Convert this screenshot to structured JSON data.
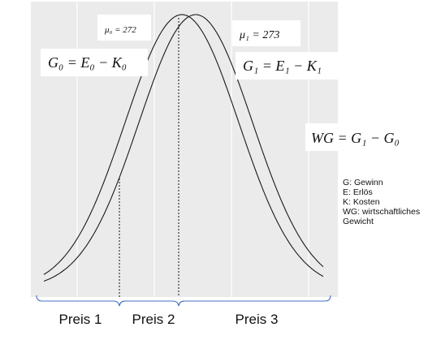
{
  "labels": {
    "mu0": "μ₀ = 272",
    "mu1": "μ₁ = 273",
    "g0": "G₀ = E₀ − K₀",
    "g1": "G₁ = E₁ − K₁",
    "wg": "WG = G₁ − G₀"
  },
  "legend": {
    "line1": "G: Gewinn",
    "line2": "E: Erlös",
    "line3": "K: Kosten",
    "line4a": "WG: wirtschaftliches",
    "line4b": "Gewicht"
  },
  "prices": {
    "p1": "Preis 1",
    "p2": "Preis 2",
    "p3": "Preis 3"
  },
  "colors": {
    "panel": "#ebebeb",
    "grid": "#ffffff",
    "curve": "#1a1a1a",
    "brace": "#4472c4"
  }
}
